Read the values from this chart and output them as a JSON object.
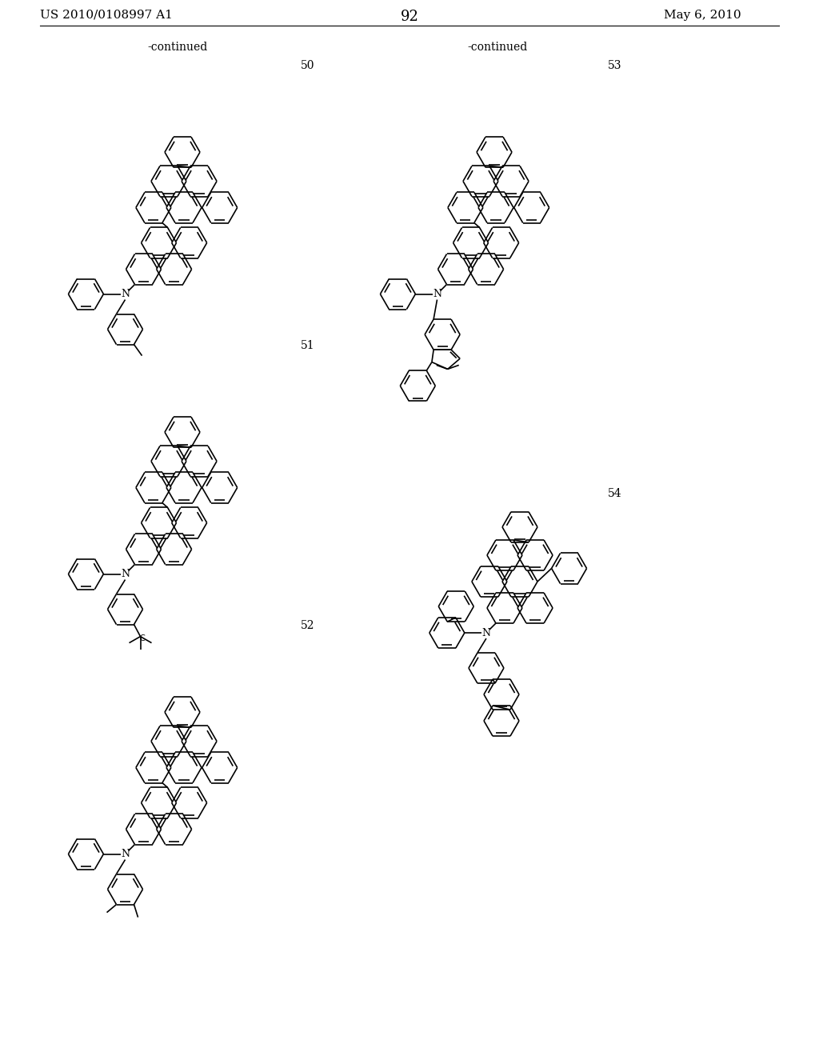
{
  "page_left": "US 2010/0108997 A1",
  "page_right": "May 6, 2010",
  "page_number": "92",
  "continued_left": "-continued",
  "continued_right": "-continued",
  "compound_numbers": [
    "50",
    "51",
    "52",
    "53",
    "54"
  ],
  "bg": "#ffffff",
  "lw": 1.2,
  "r": 22
}
